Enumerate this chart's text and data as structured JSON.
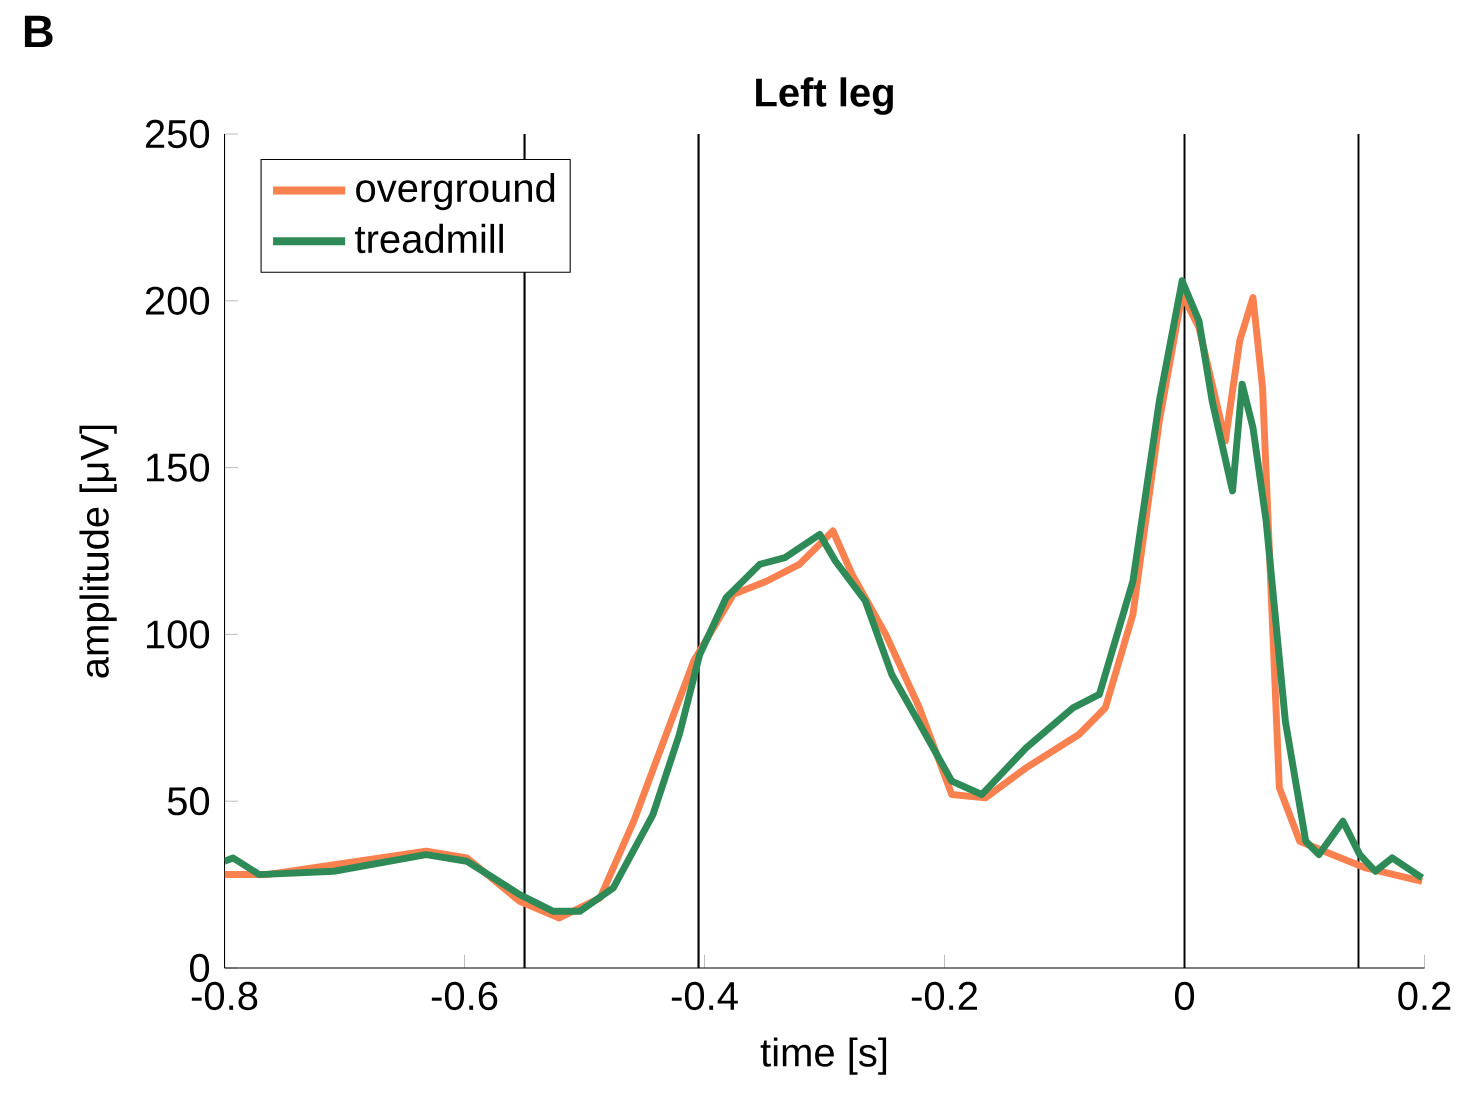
{
  "chart_data": {
    "type": "line",
    "title": "Left leg",
    "xlabel": "time [s]",
    "ylabel": "amplitude [μV]",
    "annotations": [
      "B"
    ],
    "xlim": [
      -0.8,
      0.2
    ],
    "xticks": [
      -0.8,
      -0.6,
      -0.4,
      -0.2,
      0,
      0.2
    ],
    "ylim": [
      0,
      250
    ],
    "yticks": [
      0,
      50,
      100,
      150,
      200,
      250
    ],
    "legend": "top left",
    "grid": false,
    "ref_lines": [
      {
        "axis": "x",
        "value": -0.55,
        "color": "#000000"
      },
      {
        "axis": "x",
        "value": -0.405,
        "color": "#000000"
      },
      {
        "axis": "x",
        "value": 0,
        "color": "#000000"
      },
      {
        "axis": "x",
        "value": 0.145,
        "color": "#000000"
      }
    ],
    "series": [
      {
        "name": "overground",
        "color": "#f9804f",
        "x": [
          -0.8,
          -0.765,
          -0.632,
          -0.598,
          -0.554,
          -0.521,
          -0.487,
          -0.459,
          -0.432,
          -0.409,
          -0.376,
          -0.348,
          -0.321,
          -0.293,
          -0.277,
          -0.249,
          -0.221,
          -0.194,
          -0.166,
          -0.132,
          -0.088,
          -0.066,
          -0.043,
          -0.021,
          -0.002,
          0.012,
          0.034,
          0.046,
          0.057,
          0.065,
          0.079,
          0.096,
          0.123,
          0.151,
          0.198
        ],
        "values": [
          28,
          28,
          35,
          33,
          20,
          15,
          21,
          44,
          70,
          92,
          112,
          116,
          121,
          131,
          118,
          100,
          78,
          52,
          51,
          60,
          70,
          78,
          106,
          164,
          202,
          192,
          158,
          188,
          201,
          174,
          54,
          38,
          34,
          30,
          26
        ]
      },
      {
        "name": "treadmill",
        "color": "#2e8b57",
        "x": [
          -0.8,
          -0.793,
          -0.771,
          -0.709,
          -0.632,
          -0.598,
          -0.554,
          -0.526,
          -0.504,
          -0.476,
          -0.443,
          -0.421,
          -0.404,
          -0.382,
          -0.354,
          -0.333,
          -0.304,
          -0.291,
          -0.266,
          -0.244,
          -0.222,
          -0.194,
          -0.169,
          -0.132,
          -0.093,
          -0.071,
          -0.043,
          -0.021,
          -0.002,
          0.012,
          0.023,
          0.04,
          0.048,
          0.057,
          0.068,
          0.084,
          0.101,
          0.112,
          0.132,
          0.146,
          0.159,
          0.173,
          0.198
        ],
        "values": [
          32,
          33,
          28,
          29,
          34,
          32,
          22,
          17,
          17,
          24,
          46,
          70,
          94,
          111,
          121,
          123,
          130,
          122,
          110,
          88,
          74,
          56,
          52,
          66,
          78,
          82,
          116,
          170,
          206,
          194,
          170,
          143,
          175,
          162,
          134,
          74,
          38,
          34,
          44,
          34,
          29,
          33,
          27
        ]
      }
    ]
  }
}
